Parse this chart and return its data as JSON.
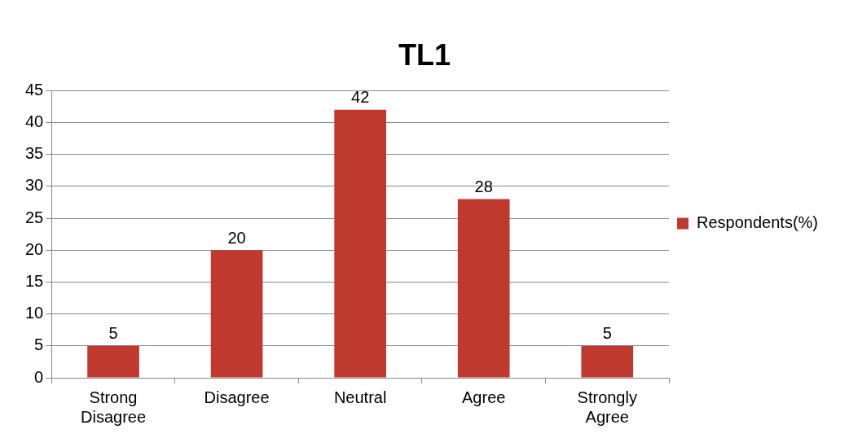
{
  "chart_data": {
    "type": "bar",
    "title": "TL1",
    "categories": [
      "Strong Disagree",
      "Disagree",
      "Neutral",
      "Agree",
      "Strongly Agree"
    ],
    "series": [
      {
        "name": "Respondents(%)",
        "color": "#c0392f",
        "values": [
          5,
          20,
          42,
          28,
          5
        ]
      }
    ],
    "ylim": [
      0,
      45
    ],
    "yticks": [
      0,
      5,
      10,
      15,
      20,
      25,
      30,
      35,
      40,
      45
    ],
    "grid": "y",
    "legend": "right",
    "data_labels": true
  }
}
